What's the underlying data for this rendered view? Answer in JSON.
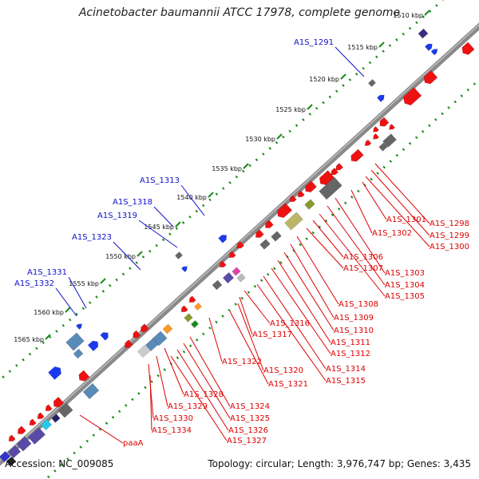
{
  "header": {
    "title": "Acinetobacter baumannii ATCC 17978, complete genome"
  },
  "footer": {
    "accession": "Accession: NC_009085",
    "summary": "Topology: circular; Length: 3,976,747 bp; Genes: 3,435"
  },
  "colors": {
    "forward_label": "#1010cc",
    "reverse_label": "#dd0000",
    "scale": "#1a8a1a",
    "backbone": "#777777"
  },
  "scale_ticks": [
    "1510 kbp",
    "1515 kbp",
    "1520 kbp",
    "1525 kbp",
    "1530 kbp",
    "1535 kbp",
    "1540 kbp",
    "1545 kbp",
    "1550 kbp",
    "1555 kbp",
    "1560 kbp",
    "1565 kbp"
  ],
  "forward_labels": [
    "A1S_1291",
    "A1S_1313",
    "A1S_1318",
    "A1S_1319",
    "A1S_1323",
    "A1S_1331",
    "A1S_1332"
  ],
  "reverse_labels": [
    "A1S_1298",
    "A1S_1299",
    "A1S_1300",
    "A1S_1301",
    "A1S_1302",
    "A1S_1303",
    "A1S_1304",
    "A1S_1305",
    "A1S_1306",
    "A1S_1307",
    "A1S_1308",
    "A1S_1309",
    "A1S_1310",
    "A1S_1311",
    "A1S_1312",
    "A1S_1314",
    "A1S_1315",
    "A1S_1316",
    "A1S_1317",
    "A1S_1320",
    "A1S_1321",
    "A1S_1322",
    "A1S_1324",
    "A1S_1325",
    "A1S_1326",
    "A1S_1327",
    "A1S_1328",
    "A1S_1329",
    "A1S_1330",
    "A1S_1334",
    "paaA"
  ]
}
